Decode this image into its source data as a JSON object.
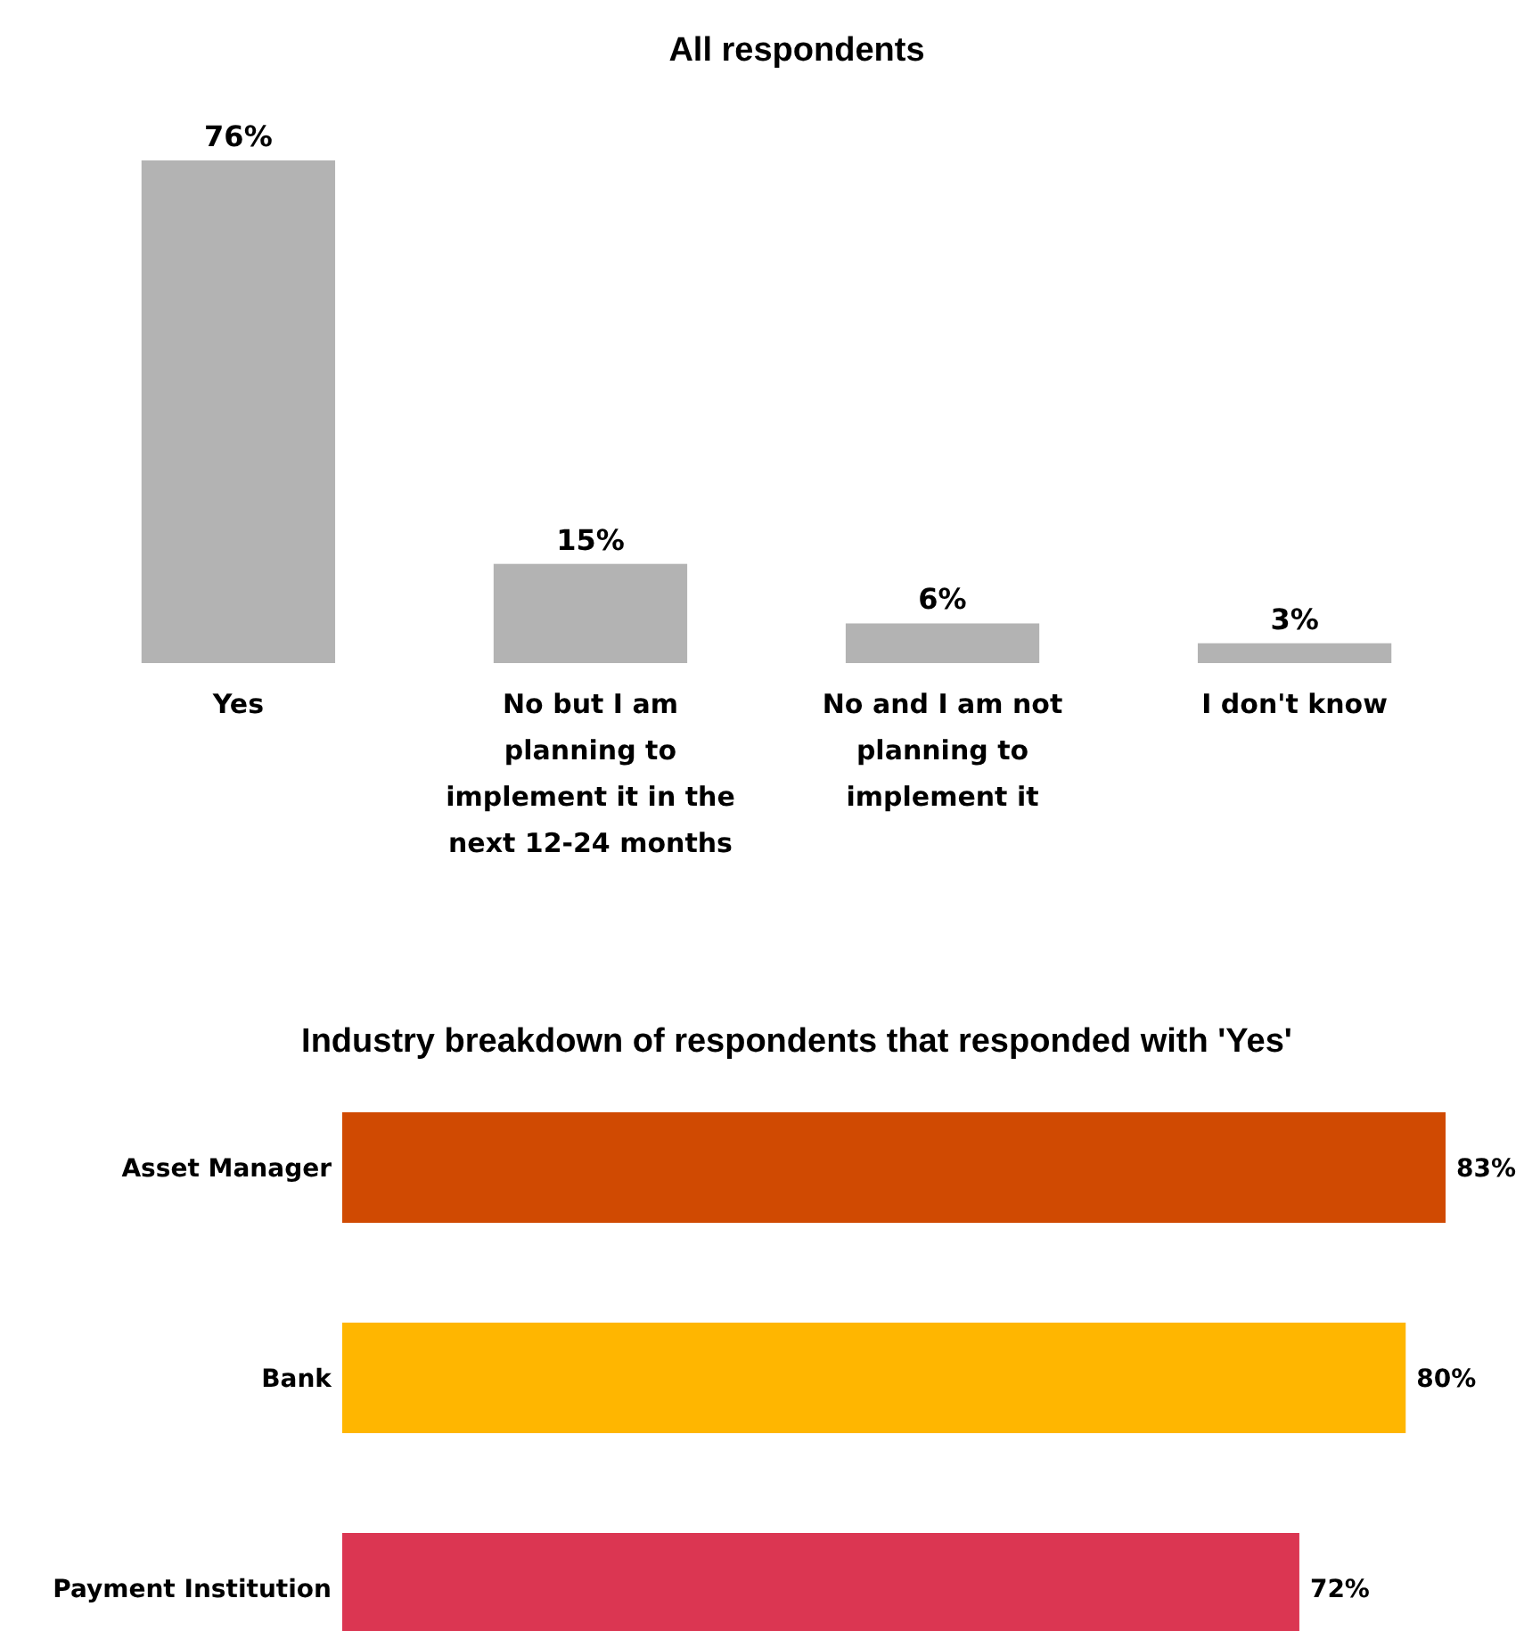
{
  "chart_data": [
    {
      "type": "bar",
      "title": "All respondents",
      "categories": [
        "Yes",
        "No but I am planning to implement it in the next 12-24 months",
        "No and I am not planning to implement it",
        "I don't know"
      ],
      "values": [
        76,
        15,
        6,
        3
      ],
      "value_labels": [
        "76%",
        "15%",
        "6%",
        "3%"
      ],
      "color": "#b3b3b3"
    },
    {
      "type": "bar",
      "orientation": "horizontal",
      "title": "Industry breakdown of respondents that responded with 'Yes'",
      "categories": [
        "Asset Manager",
        "Bank",
        "Payment Institution"
      ],
      "values": [
        83,
        80,
        72
      ],
      "value_labels": [
        "83%",
        "80%",
        "72%"
      ],
      "colors": [
        "#d04a02",
        "#ffb600",
        "#db3652"
      ]
    }
  ]
}
